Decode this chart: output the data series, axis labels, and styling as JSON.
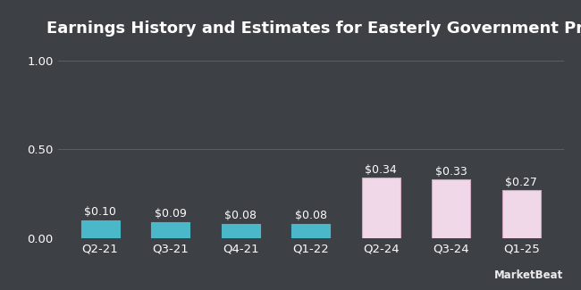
{
  "title": "Earnings History and Estimates for Easterly Government Properties",
  "categories": [
    "Q2-21",
    "Q3-21",
    "Q4-21",
    "Q1-22",
    "Q2-24",
    "Q3-24",
    "Q1-25"
  ],
  "values": [
    0.1,
    0.09,
    0.08,
    0.08,
    0.34,
    0.33,
    0.27
  ],
  "bar_colors": [
    "#4ab8c8",
    "#4ab8c8",
    "#4ab8c8",
    "#4ab8c8",
    "#f0d8e8",
    "#f0d8e8",
    "#f0d8e8"
  ],
  "bar_edge_colors": [
    "#4ab8c8",
    "#4ab8c8",
    "#4ab8c8",
    "#4ab8c8",
    "#d0a8c0",
    "#d0a8c0",
    "#d0a8c0"
  ],
  "labels": [
    "$0.10",
    "$0.09",
    "$0.08",
    "$0.08",
    "$0.34",
    "$0.33",
    "$0.27"
  ],
  "ylim": [
    0,
    1.05
  ],
  "yticks": [
    0.0,
    0.5,
    1.0
  ],
  "background_color": "#3d4045",
  "plot_bg_color": "#3d4045",
  "text_color": "#ffffff",
  "grid_color": "#5a5e65",
  "title_fontsize": 13,
  "tick_fontsize": 9.5,
  "label_fontsize": 9,
  "watermark": "MarketBeat"
}
